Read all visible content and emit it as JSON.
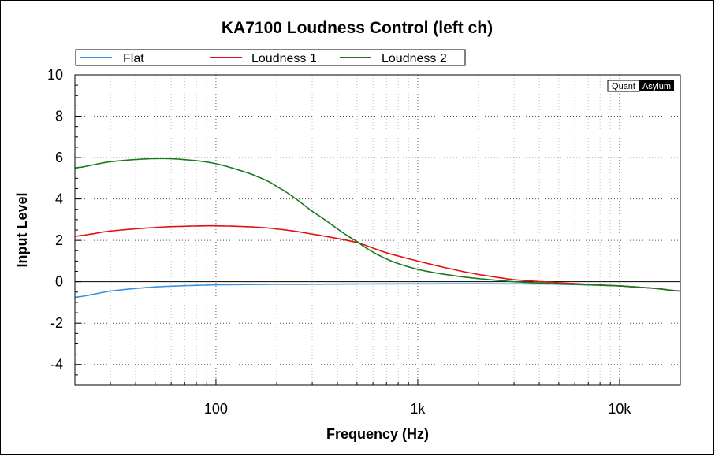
{
  "chart_data": {
    "type": "line",
    "title": "KA7100 Loudness Control (left ch)",
    "xlabel": "Frequency (Hz)",
    "ylabel": "Input Level",
    "xscale": "log",
    "xlim": [
      20,
      20000
    ],
    "ylim": [
      -5,
      10
    ],
    "yticks": [
      10,
      8,
      6,
      4,
      2,
      0,
      -2,
      -4
    ],
    "xticks": [
      {
        "value": 100,
        "label": "100"
      },
      {
        "value": 1000,
        "label": "1k"
      },
      {
        "value": 10000,
        "label": "10k"
      }
    ],
    "grid": true,
    "legend_placement": "top",
    "watermark": {
      "left": "Quant",
      "right": "Asylum"
    },
    "series": [
      {
        "name": "Flat",
        "color": "#3a8fe0",
        "x": [
          20,
          30,
          50,
          100,
          300,
          1000,
          3000,
          5000,
          10000,
          15000,
          20000
        ],
        "y": [
          -0.75,
          -0.45,
          -0.25,
          -0.15,
          -0.12,
          -0.1,
          -0.1,
          -0.12,
          -0.2,
          -0.32,
          -0.45
        ]
      },
      {
        "name": "Loudness 1",
        "color": "#e01010",
        "x": [
          20,
          30,
          50,
          70,
          100,
          150,
          200,
          300,
          500,
          700,
          1000,
          1500,
          2000,
          3000,
          5000,
          10000,
          15000,
          20000
        ],
        "y": [
          2.2,
          2.45,
          2.62,
          2.68,
          2.7,
          2.65,
          2.55,
          2.3,
          1.9,
          1.4,
          1.0,
          0.6,
          0.35,
          0.1,
          -0.05,
          -0.2,
          -0.32,
          -0.45
        ]
      },
      {
        "name": "Loudness 2",
        "color": "#1a7a1a",
        "x": [
          20,
          30,
          50,
          70,
          100,
          150,
          200,
          300,
          500,
          700,
          1000,
          1500,
          2000,
          3000,
          5000,
          10000,
          15000,
          20000
        ],
        "y": [
          5.5,
          5.8,
          5.95,
          5.9,
          5.7,
          5.2,
          4.6,
          3.4,
          1.95,
          1.1,
          0.6,
          0.3,
          0.15,
          0.0,
          -0.1,
          -0.2,
          -0.32,
          -0.45
        ]
      }
    ]
  }
}
